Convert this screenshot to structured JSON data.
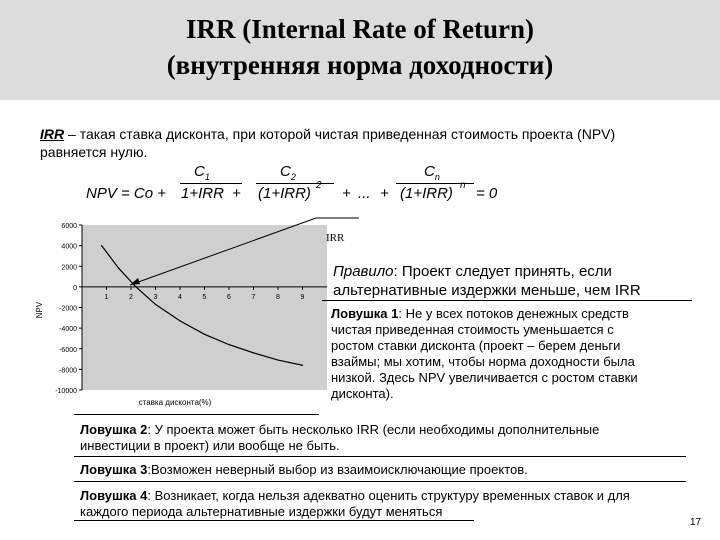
{
  "title": {
    "line1": "IRR (Internal Rate of Return)",
    "line2": "(внутренняя норма доходности)"
  },
  "definition": {
    "term": "IRR",
    "text1": " – такая ставка дисконта, при которой чистая приведенная стоимость проекта (NPV)",
    "text2": "равняется нулю."
  },
  "formula": {
    "lhs": "NPV = Co +",
    "t1_num": "C",
    "t1_sub": "1",
    "t1_den": "1+IRR",
    "plus1": "+",
    "t2_num": "C",
    "t2_sub": "2",
    "t2_den": "(1+IRR)",
    "t2_pow": "2",
    "plus2": "+",
    "dots": "...",
    "plus3": "+",
    "tn_num": "C",
    "tn_sub": "n",
    "tn_den": "(1+IRR)",
    "tn_pow": "n",
    "rhs": "= 0"
  },
  "rule": {
    "label": "Правило",
    "text1": ": Проект следует принять, если",
    "text2": "альтернативные издержки меньше, чем IRR"
  },
  "trap1": {
    "label": "Ловушка 1",
    "lines": [
      ": Не у всех потоков денежных средств",
      "чистая приведенная стоимость уменьшается с",
      "ростом ставки дисконта (проект – берем деньги",
      "взаймы; мы хотим, чтобы норма доходности была",
      "низкой. Здесь NPV увеличивается с ростом ставки",
      "дисконта)."
    ]
  },
  "trap2": {
    "label": "Ловушка 2",
    "text1": ": У проекта может быть несколько IRR (если необходимы дополнительные",
    "text2": "инвестиции в проект) или вообще не быть."
  },
  "trap3": {
    "label": "Ловушка 3",
    "text": ":Возможен неверный выбор из взаимоисключающие проектов."
  },
  "trap4": {
    "label": "Ловушка 4",
    "text1": ": Возникает, когда нельзя адекватно оценить структуру временных ставок и для",
    "text2": "каждого периода альтернативные издержки будут меняться"
  },
  "page_number": "17",
  "chart_data": {
    "type": "line",
    "ylabel": "NPV",
    "xlabel": "ставка дисконта(%)",
    "annotation": "IRR",
    "x_ticks": [
      "1",
      "2",
      "3",
      "4",
      "5",
      "6",
      "7",
      "8",
      "9"
    ],
    "y_ticks": [
      "6000",
      "4000",
      "2000",
      "0",
      "-2000",
      "-4000",
      "-6000",
      "-8000",
      "-10000"
    ],
    "ylim": [
      -10000,
      6000
    ],
    "xlim": [
      0,
      10
    ],
    "grid": false,
    "series": [
      {
        "x": [
          0.8,
          1.5,
          2.2,
          3,
          4,
          5,
          6,
          7,
          8,
          9
        ],
        "y": [
          4000,
          1800,
          0,
          -1700,
          -3300,
          -4600,
          -5600,
          -6400,
          -7100,
          -7600
        ],
        "color": "#000000"
      }
    ],
    "colors": {
      "plot_bg": "#ffffff",
      "frame_bg": "#cfcfcf"
    }
  }
}
